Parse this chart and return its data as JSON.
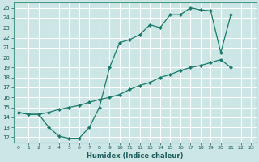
{
  "xlabel": "Humidex (Indice chaleur)",
  "bg_color": "#cce5e5",
  "grid_color": "#ffffff",
  "line_color": "#1a7a6a",
  "line1_x": [
    0,
    1,
    2,
    3,
    4,
    5,
    6,
    7,
    8,
    9,
    10,
    11,
    12,
    13,
    14,
    15,
    16,
    17,
    18,
    19,
    20,
    21
  ],
  "line1_y": [
    14.5,
    14.3,
    14.3,
    13.0,
    12.1,
    11.9,
    11.9,
    13.0,
    15.0,
    19.0,
    21.5,
    21.8,
    22.3,
    23.3,
    23.0,
    24.3,
    24.3,
    25.0,
    24.8,
    24.7,
    20.5,
    24.3
  ],
  "line2_x": [
    0,
    1,
    2,
    3,
    4,
    5,
    6,
    7,
    8,
    9,
    10,
    11,
    12,
    13,
    14,
    15,
    16,
    17,
    18,
    19,
    20,
    21
  ],
  "line2_y": [
    14.5,
    14.3,
    14.3,
    14.5,
    14.8,
    15.0,
    15.2,
    15.5,
    15.8,
    16.0,
    16.3,
    16.8,
    17.2,
    17.5,
    18.0,
    18.3,
    18.7,
    19.0,
    19.2,
    19.5,
    19.8,
    19.0
  ],
  "xlim": [
    -0.5,
    23.5
  ],
  "ylim": [
    11.5,
    25.5
  ],
  "yticks": [
    12,
    13,
    14,
    15,
    16,
    17,
    18,
    19,
    20,
    21,
    22,
    23,
    24,
    25
  ],
  "xticks": [
    0,
    1,
    2,
    3,
    4,
    5,
    6,
    7,
    8,
    9,
    10,
    11,
    12,
    13,
    14,
    15,
    16,
    17,
    18,
    19,
    20,
    21,
    22,
    23
  ]
}
